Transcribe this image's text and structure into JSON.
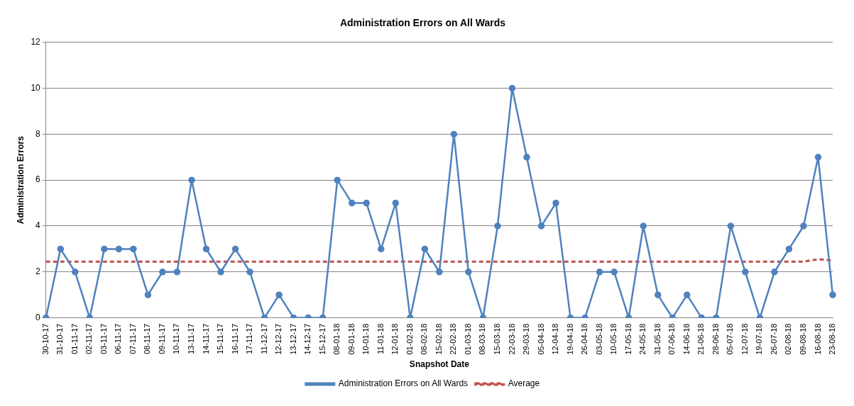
{
  "chart_data": {
    "type": "line",
    "title": "Administration Errors on All Wards",
    "xlabel": "Snapshot Date",
    "ylabel": "Administration Errors",
    "categories": [
      "30-10-17",
      "31-10-17",
      "01-11-17",
      "02-11-17",
      "03-11-17",
      "06-11-17",
      "07-11-17",
      "08-11-17",
      "09-11-17",
      "10-11-17",
      "13-11-17",
      "14-11-17",
      "15-11-17",
      "16-11-17",
      "17-11-17",
      "11-12-17",
      "12-12-17",
      "13-12-17",
      "14-12-17",
      "15-12-17",
      "08-01-18",
      "09-01-18",
      "10-01-18",
      "11-01-18",
      "12-01-18",
      "01-02-18",
      "08-02-18",
      "15-02-18",
      "22-02-18",
      "01-03-18",
      "08-03-18",
      "15-03-18",
      "22-03-18",
      "29-03-18",
      "05-04-18",
      "12-04-18",
      "19-04-18",
      "26-04-18",
      "03-05-18",
      "10-05-18",
      "17-05-18",
      "24-05-18",
      "31-05-18",
      "07-06-18",
      "14-06-18",
      "21-06-18",
      "28-06-18",
      "05-07-18",
      "12-07-18",
      "19-07-18",
      "26-07-18",
      "02-08-18",
      "09-08-18",
      "16-08-18",
      "23-08-18"
    ],
    "series": [
      {
        "name": "Administration Errors on All Wards",
        "color": "#4f81bd",
        "marker": "circle",
        "line_style": "solid",
        "values": [
          0,
          3,
          2,
          0,
          3,
          3,
          3,
          1,
          2,
          2,
          6,
          3,
          2,
          3,
          2,
          0,
          1,
          0,
          0,
          0,
          6,
          5,
          5,
          3,
          5,
          0,
          3,
          2,
          8,
          2,
          0,
          4,
          10,
          7,
          4,
          5,
          0,
          0,
          2,
          2,
          0,
          4,
          1,
          0,
          1,
          0,
          0,
          4,
          2,
          0,
          2,
          3,
          4,
          7,
          1
        ]
      },
      {
        "name": "Average",
        "color": "#c0504d",
        "marker": "none",
        "line_style": "dashed",
        "values": [
          2.45,
          2.45,
          2.45,
          2.45,
          2.45,
          2.45,
          2.45,
          2.45,
          2.45,
          2.45,
          2.45,
          2.45,
          2.45,
          2.45,
          2.45,
          2.45,
          2.45,
          2.45,
          2.45,
          2.45,
          2.45,
          2.45,
          2.45,
          2.45,
          2.45,
          2.45,
          2.45,
          2.45,
          2.45,
          2.45,
          2.45,
          2.45,
          2.45,
          2.45,
          2.45,
          2.45,
          2.45,
          2.45,
          2.45,
          2.45,
          2.45,
          2.45,
          2.45,
          2.45,
          2.45,
          2.45,
          2.45,
          2.45,
          2.45,
          2.45,
          2.45,
          2.45,
          2.45,
          2.55,
          2.5
        ]
      }
    ],
    "ylim": [
      0,
      12
    ],
    "yticks": [
      0,
      2,
      4,
      6,
      8,
      10,
      12
    ],
    "grid": "y",
    "legend": "bottom"
  }
}
